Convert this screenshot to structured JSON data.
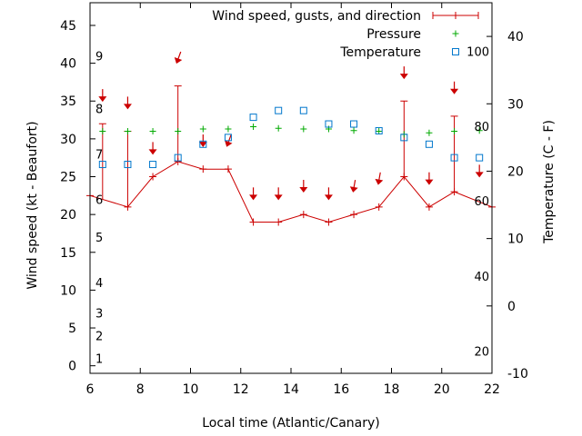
{
  "chart_data": {
    "type": "line",
    "xlabel": "Local time (Atlantic/Canary)",
    "ylabel_left": "Wind speed (kt - Beaufort)",
    "ylabel_right": "Temperature (C - F)",
    "xlim": [
      6,
      22
    ],
    "ylim_left": [
      -1,
      48
    ],
    "ylim_right": [
      -10,
      45
    ],
    "x_ticks": [
      6,
      8,
      10,
      12,
      14,
      16,
      18,
      20,
      22
    ],
    "y_ticks_left": [
      0,
      5,
      10,
      15,
      20,
      25,
      30,
      35,
      40,
      45
    ],
    "y_ticks_right": [
      -10,
      0,
      10,
      20,
      30,
      40
    ],
    "beaufort_labels": [
      {
        "label": "1",
        "kt": 1
      },
      {
        "label": "2",
        "kt": 4
      },
      {
        "label": "3",
        "kt": 7
      },
      {
        "label": "4",
        "kt": 11
      },
      {
        "label": "5",
        "kt": 17
      },
      {
        "label": "6",
        "kt": 22
      },
      {
        "label": "7",
        "kt": 28
      },
      {
        "label": "8",
        "kt": 34
      },
      {
        "label": "9",
        "kt": 41
      }
    ],
    "fahrenheit_labels": [
      {
        "label": "20",
        "c": -6.7
      },
      {
        "label": "40",
        "c": 4.4
      },
      {
        "label": "60",
        "c": 15.6
      },
      {
        "label": "80",
        "c": 26.7
      },
      {
        "label": "100",
        "c": 37.8
      }
    ],
    "legend": [
      "Wind speed, gusts, and direction",
      "Pressure",
      "Temperature"
    ],
    "legend_position": "top-right",
    "colors": {
      "wind": "#cc0000",
      "pressure": "#00aa00",
      "temperature": "#0077cc"
    },
    "series": [
      {
        "name": "Wind speed, gusts, and direction",
        "x": [
          6,
          7.5,
          8.5,
          9.5,
          10.5,
          11.5,
          12.5,
          13.5,
          14.5,
          15.5,
          16.5,
          17.5,
          18.5,
          19.5,
          20.5,
          22
        ],
        "values": [
          22.5,
          21,
          25,
          27,
          26,
          26,
          19,
          19,
          20,
          19,
          20,
          21,
          25,
          21,
          23,
          21
        ]
      },
      {
        "name": "Gusts",
        "x": [
          6.5,
          7.5,
          9.5,
          18.5,
          20.5
        ],
        "values": [
          32,
          31,
          37,
          35,
          33
        ]
      },
      {
        "name": "Direction",
        "x": [
          6.5,
          7.5,
          8.5,
          9.5,
          10.5,
          11.5,
          12.5,
          13.5,
          14.5,
          15.5,
          16.5,
          17.5,
          18.5,
          19.5,
          20.5,
          21.5
        ],
        "values": [
          35.5,
          34.5,
          28.5,
          40.5,
          29.5,
          29.5,
          22.5,
          22.5,
          23.5,
          22.5,
          23.5,
          24.5,
          38.5,
          24.5,
          36.5,
          25.5
        ],
        "rotation_deg": [
          0,
          0,
          0,
          20,
          0,
          20,
          0,
          0,
          0,
          0,
          10,
          10,
          0,
          0,
          0,
          0
        ]
      },
      {
        "name": "Pressure",
        "x": [
          6.5,
          7.5,
          8.5,
          9.5,
          10.5,
          11.5,
          12.5,
          13.5,
          14.5,
          15.5,
          16.5,
          17.5,
          18.5,
          19.5,
          20.5,
          21.5
        ],
        "values": [
          31,
          31,
          31,
          31,
          31.3,
          31.3,
          31.6,
          31.4,
          31.3,
          31.3,
          31.1,
          31,
          30.6,
          30.8,
          31,
          31.1
        ]
      },
      {
        "name": "Temperature",
        "x": [
          6.5,
          7.5,
          8.5,
          9.5,
          10.5,
          11.5,
          12.5,
          13.5,
          14.5,
          15.5,
          16.5,
          17.5,
          18.5,
          19.5,
          20.5,
          21.5
        ],
        "values": [
          21,
          21,
          21,
          22,
          24,
          25,
          28,
          29,
          29,
          27,
          27,
          26,
          25,
          24,
          22,
          22
        ]
      }
    ]
  }
}
